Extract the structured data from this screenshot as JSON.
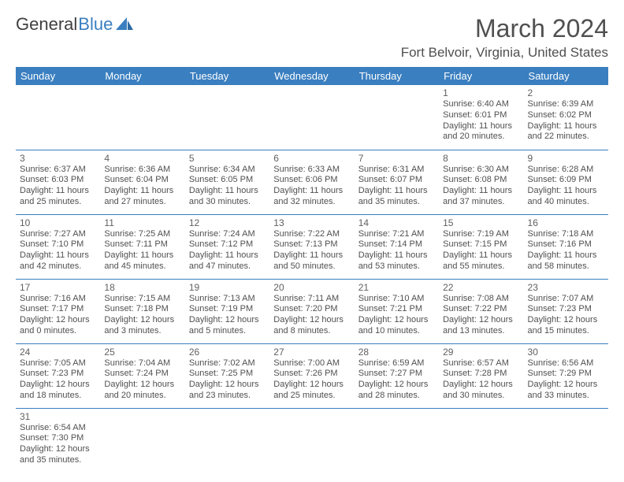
{
  "logo": {
    "word1": "General",
    "word2": "Blue"
  },
  "title": "March 2024",
  "location": "Fort Belvoir, Virginia, United States",
  "colors": {
    "header_bg": "#3a7fc0",
    "header_text": "#ffffff",
    "cell_border": "#3a7fc0",
    "text": "#505050",
    "logo_gray": "#404040",
    "logo_blue": "#3a7fc0",
    "background": "#ffffff"
  },
  "typography": {
    "title_fontsize": 32,
    "location_fontsize": 17,
    "header_fontsize": 13,
    "daynum_fontsize": 12,
    "cell_fontsize": 11
  },
  "week_headers": [
    "Sunday",
    "Monday",
    "Tuesday",
    "Wednesday",
    "Thursday",
    "Friday",
    "Saturday"
  ],
  "weeks": [
    [
      null,
      null,
      null,
      null,
      null,
      {
        "n": "1",
        "sr": "Sunrise: 6:40 AM",
        "ss": "Sunset: 6:01 PM",
        "d1": "Daylight: 11 hours",
        "d2": "and 20 minutes."
      },
      {
        "n": "2",
        "sr": "Sunrise: 6:39 AM",
        "ss": "Sunset: 6:02 PM",
        "d1": "Daylight: 11 hours",
        "d2": "and 22 minutes."
      }
    ],
    [
      {
        "n": "3",
        "sr": "Sunrise: 6:37 AM",
        "ss": "Sunset: 6:03 PM",
        "d1": "Daylight: 11 hours",
        "d2": "and 25 minutes."
      },
      {
        "n": "4",
        "sr": "Sunrise: 6:36 AM",
        "ss": "Sunset: 6:04 PM",
        "d1": "Daylight: 11 hours",
        "d2": "and 27 minutes."
      },
      {
        "n": "5",
        "sr": "Sunrise: 6:34 AM",
        "ss": "Sunset: 6:05 PM",
        "d1": "Daylight: 11 hours",
        "d2": "and 30 minutes."
      },
      {
        "n": "6",
        "sr": "Sunrise: 6:33 AM",
        "ss": "Sunset: 6:06 PM",
        "d1": "Daylight: 11 hours",
        "d2": "and 32 minutes."
      },
      {
        "n": "7",
        "sr": "Sunrise: 6:31 AM",
        "ss": "Sunset: 6:07 PM",
        "d1": "Daylight: 11 hours",
        "d2": "and 35 minutes."
      },
      {
        "n": "8",
        "sr": "Sunrise: 6:30 AM",
        "ss": "Sunset: 6:08 PM",
        "d1": "Daylight: 11 hours",
        "d2": "and 37 minutes."
      },
      {
        "n": "9",
        "sr": "Sunrise: 6:28 AM",
        "ss": "Sunset: 6:09 PM",
        "d1": "Daylight: 11 hours",
        "d2": "and 40 minutes."
      }
    ],
    [
      {
        "n": "10",
        "sr": "Sunrise: 7:27 AM",
        "ss": "Sunset: 7:10 PM",
        "d1": "Daylight: 11 hours",
        "d2": "and 42 minutes."
      },
      {
        "n": "11",
        "sr": "Sunrise: 7:25 AM",
        "ss": "Sunset: 7:11 PM",
        "d1": "Daylight: 11 hours",
        "d2": "and 45 minutes."
      },
      {
        "n": "12",
        "sr": "Sunrise: 7:24 AM",
        "ss": "Sunset: 7:12 PM",
        "d1": "Daylight: 11 hours",
        "d2": "and 47 minutes."
      },
      {
        "n": "13",
        "sr": "Sunrise: 7:22 AM",
        "ss": "Sunset: 7:13 PM",
        "d1": "Daylight: 11 hours",
        "d2": "and 50 minutes."
      },
      {
        "n": "14",
        "sr": "Sunrise: 7:21 AM",
        "ss": "Sunset: 7:14 PM",
        "d1": "Daylight: 11 hours",
        "d2": "and 53 minutes."
      },
      {
        "n": "15",
        "sr": "Sunrise: 7:19 AM",
        "ss": "Sunset: 7:15 PM",
        "d1": "Daylight: 11 hours",
        "d2": "and 55 minutes."
      },
      {
        "n": "16",
        "sr": "Sunrise: 7:18 AM",
        "ss": "Sunset: 7:16 PM",
        "d1": "Daylight: 11 hours",
        "d2": "and 58 minutes."
      }
    ],
    [
      {
        "n": "17",
        "sr": "Sunrise: 7:16 AM",
        "ss": "Sunset: 7:17 PM",
        "d1": "Daylight: 12 hours",
        "d2": "and 0 minutes."
      },
      {
        "n": "18",
        "sr": "Sunrise: 7:15 AM",
        "ss": "Sunset: 7:18 PM",
        "d1": "Daylight: 12 hours",
        "d2": "and 3 minutes."
      },
      {
        "n": "19",
        "sr": "Sunrise: 7:13 AM",
        "ss": "Sunset: 7:19 PM",
        "d1": "Daylight: 12 hours",
        "d2": "and 5 minutes."
      },
      {
        "n": "20",
        "sr": "Sunrise: 7:11 AM",
        "ss": "Sunset: 7:20 PM",
        "d1": "Daylight: 12 hours",
        "d2": "and 8 minutes."
      },
      {
        "n": "21",
        "sr": "Sunrise: 7:10 AM",
        "ss": "Sunset: 7:21 PM",
        "d1": "Daylight: 12 hours",
        "d2": "and 10 minutes."
      },
      {
        "n": "22",
        "sr": "Sunrise: 7:08 AM",
        "ss": "Sunset: 7:22 PM",
        "d1": "Daylight: 12 hours",
        "d2": "and 13 minutes."
      },
      {
        "n": "23",
        "sr": "Sunrise: 7:07 AM",
        "ss": "Sunset: 7:23 PM",
        "d1": "Daylight: 12 hours",
        "d2": "and 15 minutes."
      }
    ],
    [
      {
        "n": "24",
        "sr": "Sunrise: 7:05 AM",
        "ss": "Sunset: 7:23 PM",
        "d1": "Daylight: 12 hours",
        "d2": "and 18 minutes."
      },
      {
        "n": "25",
        "sr": "Sunrise: 7:04 AM",
        "ss": "Sunset: 7:24 PM",
        "d1": "Daylight: 12 hours",
        "d2": "and 20 minutes."
      },
      {
        "n": "26",
        "sr": "Sunrise: 7:02 AM",
        "ss": "Sunset: 7:25 PM",
        "d1": "Daylight: 12 hours",
        "d2": "and 23 minutes."
      },
      {
        "n": "27",
        "sr": "Sunrise: 7:00 AM",
        "ss": "Sunset: 7:26 PM",
        "d1": "Daylight: 12 hours",
        "d2": "and 25 minutes."
      },
      {
        "n": "28",
        "sr": "Sunrise: 6:59 AM",
        "ss": "Sunset: 7:27 PM",
        "d1": "Daylight: 12 hours",
        "d2": "and 28 minutes."
      },
      {
        "n": "29",
        "sr": "Sunrise: 6:57 AM",
        "ss": "Sunset: 7:28 PM",
        "d1": "Daylight: 12 hours",
        "d2": "and 30 minutes."
      },
      {
        "n": "30",
        "sr": "Sunrise: 6:56 AM",
        "ss": "Sunset: 7:29 PM",
        "d1": "Daylight: 12 hours",
        "d2": "and 33 minutes."
      }
    ],
    [
      {
        "n": "31",
        "sr": "Sunrise: 6:54 AM",
        "ss": "Sunset: 7:30 PM",
        "d1": "Daylight: 12 hours",
        "d2": "and 35 minutes."
      },
      null,
      null,
      null,
      null,
      null,
      null
    ]
  ]
}
